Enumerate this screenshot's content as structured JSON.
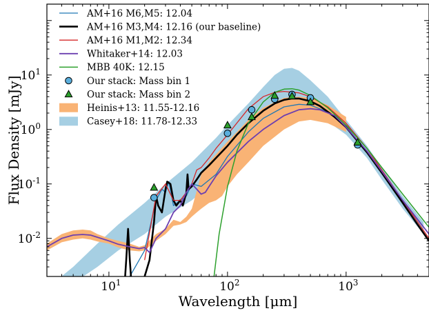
{
  "chart_data": {
    "type": "line",
    "xlabel": "Wavelength [μm]",
    "ylabel": "Flux Density [mJy]",
    "xscale": "log",
    "yscale": "log",
    "xlim": [
      3,
      5000
    ],
    "ylim": [
      0.002,
      200
    ],
    "legend_position": "top-left",
    "x_ticks": [
      {
        "value": 10,
        "label": "10",
        "exp": "1"
      },
      {
        "value": 100,
        "label": "10",
        "exp": "2"
      },
      {
        "value": 1000,
        "label": "10",
        "exp": "3"
      }
    ],
    "y_ticks": [
      {
        "value": 0.01,
        "label": "10",
        "exp": "-2"
      },
      {
        "value": 0.1,
        "label": "10",
        "exp": "-1"
      },
      {
        "value": 1,
        "label": "10",
        "exp": "0"
      },
      {
        "value": 10,
        "label": "10",
        "exp": "1"
      }
    ],
    "bands": [
      {
        "name": "Casey+18: 11.78-12.33",
        "color": "#a6cfe3",
        "upper": [
          [
            3.5,
            0.0016
          ],
          [
            5,
            0.003
          ],
          [
            8,
            0.008
          ],
          [
            12,
            0.018
          ],
          [
            20,
            0.045
          ],
          [
            30,
            0.1
          ],
          [
            50,
            0.25
          ],
          [
            80,
            0.7
          ],
          [
            100,
            1.2
          ],
          [
            150,
            3.0
          ],
          [
            200,
            6.0
          ],
          [
            250,
            10.0
          ],
          [
            300,
            13.0
          ],
          [
            350,
            13.5
          ],
          [
            400,
            12.0
          ],
          [
            500,
            8.0
          ],
          [
            700,
            4.0
          ],
          [
            1000,
            1.5
          ],
          [
            1500,
            0.5
          ],
          [
            2000,
            0.2
          ],
          [
            3000,
            0.06
          ],
          [
            4500,
            0.02
          ]
        ],
        "lower": [
          [
            3.5,
            0.0008
          ],
          [
            5,
            0.0015
          ],
          [
            8,
            0.003
          ],
          [
            12,
            0.006
          ],
          [
            20,
            0.012
          ],
          [
            30,
            0.025
          ],
          [
            50,
            0.05
          ],
          [
            80,
            0.12
          ],
          [
            100,
            0.2
          ],
          [
            150,
            0.55
          ],
          [
            200,
            1.1
          ],
          [
            250,
            1.5
          ],
          [
            300,
            1.8
          ],
          [
            400,
            2.0
          ],
          [
            500,
            1.9
          ],
          [
            700,
            1.4
          ],
          [
            1000,
            0.8
          ],
          [
            1500,
            0.3
          ],
          [
            2000,
            0.12
          ],
          [
            3000,
            0.035
          ],
          [
            4500,
            0.012
          ]
        ]
      },
      {
        "name": "Heinis+13: 11.55-12.16",
        "color": "#f9b375",
        "upper": [
          [
            3,
            0.008
          ],
          [
            4,
            0.012
          ],
          [
            5,
            0.014
          ],
          [
            6,
            0.0145
          ],
          [
            7,
            0.014
          ],
          [
            8,
            0.012
          ],
          [
            10,
            0.01
          ],
          [
            12,
            0.009
          ],
          [
            15,
            0.008
          ],
          [
            18,
            0.007
          ],
          [
            20,
            0.0075
          ],
          [
            25,
            0.012
          ],
          [
            30,
            0.015
          ],
          [
            35,
            0.022
          ],
          [
            40,
            0.02
          ],
          [
            45,
            0.025
          ],
          [
            50,
            0.035
          ],
          [
            60,
            0.15
          ],
          [
            70,
            0.25
          ],
          [
            80,
            0.35
          ],
          [
            100,
            0.6
          ],
          [
            120,
            0.9
          ],
          [
            150,
            1.5
          ],
          [
            200,
            2.5
          ],
          [
            300,
            3.8
          ],
          [
            400,
            4.0
          ],
          [
            500,
            3.8
          ],
          [
            700,
            2.8
          ],
          [
            1000,
            1.7
          ]
        ],
        "lower": [
          [
            3,
            0.006
          ],
          [
            4,
            0.0085
          ],
          [
            5,
            0.0095
          ],
          [
            6,
            0.01
          ],
          [
            7,
            0.0095
          ],
          [
            8,
            0.0088
          ],
          [
            10,
            0.008
          ],
          [
            12,
            0.0068
          ],
          [
            15,
            0.006
          ],
          [
            18,
            0.0058
          ],
          [
            20,
            0.006
          ],
          [
            25,
            0.009
          ],
          [
            30,
            0.012
          ],
          [
            35,
            0.017
          ],
          [
            40,
            0.018
          ],
          [
            45,
            0.02
          ],
          [
            50,
            0.025
          ],
          [
            55,
            0.03
          ],
          [
            60,
            0.035
          ],
          [
            70,
            0.045
          ],
          [
            80,
            0.05
          ],
          [
            90,
            0.06
          ],
          [
            100,
            0.09
          ],
          [
            120,
            0.15
          ],
          [
            150,
            0.25
          ],
          [
            200,
            0.5
          ],
          [
            300,
            1.0
          ],
          [
            400,
            1.4
          ],
          [
            500,
            1.5
          ],
          [
            700,
            1.3
          ],
          [
            1000,
            0.9
          ]
        ]
      }
    ],
    "series": [
      {
        "name": "AM+16 M6,M5: 12.04",
        "color": "#1f77b4",
        "width": 1.3,
        "points": [
          [
            15,
            0.002
          ],
          [
            20,
            0.006
          ],
          [
            25,
            0.05
          ],
          [
            28,
            0.08
          ],
          [
            30,
            0.07
          ],
          [
            32,
            0.11
          ],
          [
            35,
            0.04
          ],
          [
            40,
            0.05
          ],
          [
            45,
            0.06
          ],
          [
            50,
            0.1
          ],
          [
            60,
            0.09
          ],
          [
            80,
            0.15
          ],
          [
            100,
            0.32
          ],
          [
            150,
            0.9
          ],
          [
            200,
            1.6
          ],
          [
            300,
            2.6
          ],
          [
            400,
            2.9
          ],
          [
            500,
            2.8
          ],
          [
            700,
            2.1
          ],
          [
            1000,
            1.1
          ],
          [
            1500,
            0.4
          ],
          [
            2000,
            0.17
          ],
          [
            3000,
            0.05
          ],
          [
            5000,
            0.012
          ]
        ]
      },
      {
        "name": "AM+16 M3,M4: 12.16 (our baseline)",
        "color": "#000000",
        "width": 2.6,
        "points": [
          [
            13.5,
            0.0012
          ],
          [
            14,
            0.004
          ],
          [
            14.5,
            0.015
          ],
          [
            15,
            0.004
          ],
          [
            15.5,
            0.0015
          ],
          [
            20,
            0.002
          ],
          [
            22,
            0.004
          ],
          [
            24,
            0.02
          ],
          [
            25,
            0.06
          ],
          [
            26,
            0.04
          ],
          [
            28,
            0.03
          ],
          [
            30,
            0.08
          ],
          [
            31,
            0.11
          ],
          [
            33,
            0.1
          ],
          [
            35,
            0.05
          ],
          [
            37,
            0.04
          ],
          [
            40,
            0.05
          ],
          [
            42,
            0.04
          ],
          [
            45,
            0.07
          ],
          [
            46,
            0.15
          ],
          [
            47,
            0.08
          ],
          [
            50,
            0.09
          ],
          [
            55,
            0.12
          ],
          [
            60,
            0.16
          ],
          [
            70,
            0.22
          ],
          [
            80,
            0.3
          ],
          [
            100,
            0.5
          ],
          [
            120,
            0.8
          ],
          [
            150,
            1.3
          ],
          [
            200,
            2.2
          ],
          [
            250,
            3.0
          ],
          [
            300,
            3.5
          ],
          [
            350,
            3.7
          ],
          [
            400,
            3.7
          ],
          [
            500,
            3.3
          ],
          [
            600,
            2.7
          ],
          [
            800,
            1.7
          ],
          [
            1000,
            1.1
          ],
          [
            1300,
            0.55
          ],
          [
            1500,
            0.38
          ],
          [
            2000,
            0.16
          ],
          [
            3000,
            0.045
          ],
          [
            4000,
            0.018
          ],
          [
            5000,
            0.009
          ]
        ]
      },
      {
        "name": "AM+16 M1,M2: 12.34",
        "color": "#d62728",
        "width": 1.3,
        "points": [
          [
            20,
            0.004
          ],
          [
            25,
            0.06
          ],
          [
            30,
            0.1
          ],
          [
            35,
            0.05
          ],
          [
            40,
            0.05
          ],
          [
            45,
            0.07
          ],
          [
            50,
            0.1
          ],
          [
            55,
            0.18
          ],
          [
            60,
            0.2
          ],
          [
            70,
            0.3
          ],
          [
            80,
            0.45
          ],
          [
            100,
            0.8
          ],
          [
            150,
            2.4
          ],
          [
            200,
            4.0
          ],
          [
            250,
            4.8
          ],
          [
            300,
            5.0
          ],
          [
            400,
            4.7
          ],
          [
            500,
            4.0
          ],
          [
            700,
            2.6
          ],
          [
            1000,
            1.3
          ],
          [
            1500,
            0.45
          ],
          [
            2000,
            0.18
          ],
          [
            3000,
            0.05
          ],
          [
            5000,
            0.01
          ]
        ]
      },
      {
        "name": "Whitaker+14: 12.03",
        "color": "#6c3fb0",
        "width": 1.8,
        "points": [
          [
            3,
            0.007
          ],
          [
            4,
            0.01
          ],
          [
            5,
            0.0115
          ],
          [
            6,
            0.0118
          ],
          [
            7,
            0.0115
          ],
          [
            8,
            0.0105
          ],
          [
            10,
            0.009
          ],
          [
            12,
            0.0078
          ],
          [
            15,
            0.007
          ],
          [
            18,
            0.0065
          ],
          [
            20,
            0.0068
          ],
          [
            22,
            0.0055
          ],
          [
            25,
            0.01
          ],
          [
            30,
            0.015
          ],
          [
            35,
            0.03
          ],
          [
            40,
            0.04
          ],
          [
            45,
            0.07
          ],
          [
            50,
            0.1
          ],
          [
            55,
            0.08
          ],
          [
            60,
            0.065
          ],
          [
            65,
            0.07
          ],
          [
            70,
            0.09
          ],
          [
            80,
            0.14
          ],
          [
            100,
            0.25
          ],
          [
            150,
            0.6
          ],
          [
            200,
            1.0
          ],
          [
            300,
            1.8
          ],
          [
            400,
            2.3
          ],
          [
            500,
            2.4
          ],
          [
            600,
            2.3
          ],
          [
            800,
            1.8
          ],
          [
            1000,
            1.1
          ],
          [
            1500,
            0.4
          ],
          [
            2000,
            0.17
          ],
          [
            3000,
            0.05
          ],
          [
            5000,
            0.012
          ]
        ]
      },
      {
        "name": "MBB 40K: 12.15",
        "color": "#2ca02c",
        "width": 1.5,
        "points": [
          [
            77,
            0.002
          ],
          [
            85,
            0.012
          ],
          [
            100,
            0.09
          ],
          [
            120,
            0.4
          ],
          [
            150,
            1.3
          ],
          [
            200,
            3.2
          ],
          [
            250,
            4.8
          ],
          [
            300,
            5.5
          ],
          [
            350,
            5.6
          ],
          [
            400,
            5.3
          ],
          [
            500,
            4.2
          ],
          [
            700,
            2.5
          ],
          [
            1000,
            1.2
          ],
          [
            1500,
            0.45
          ],
          [
            2000,
            0.2
          ],
          [
            3000,
            0.065
          ],
          [
            5000,
            0.016
          ]
        ]
      }
    ],
    "markers": [
      {
        "name": "Our stack: Mass bin 1",
        "shape": "circle",
        "color": "#5aaedc",
        "points": [
          [
            24,
            0.056
          ],
          [
            100,
            0.85
          ],
          [
            160,
            2.3
          ],
          [
            250,
            3.6
          ],
          [
            350,
            4.4
          ],
          [
            500,
            3.8
          ],
          [
            1250,
            0.52
          ]
        ]
      },
      {
        "name": "Our stack: Mass bin 2",
        "shape": "triangle",
        "color": "#2ca02c",
        "points": [
          [
            24,
            0.086
          ],
          [
            100,
            1.2
          ],
          [
            160,
            1.7
          ],
          [
            250,
            4.2
          ],
          [
            350,
            4.1
          ],
          [
            500,
            3.2
          ],
          [
            1250,
            0.58
          ]
        ]
      }
    ],
    "legend": [
      {
        "label": "AM+16 M6,M5: 12.04",
        "kind": "line",
        "ref": 0
      },
      {
        "label": "AM+16 M3,M4: 12.16 (our baseline)",
        "kind": "line",
        "ref": 1
      },
      {
        "label": "AM+16 M1,M2: 12.34",
        "kind": "line",
        "ref": 2
      },
      {
        "label": "Whitaker+14: 12.03",
        "kind": "line",
        "ref": 3
      },
      {
        "label": "MBB 40K: 12.15",
        "kind": "line",
        "ref": 4
      },
      {
        "label": "Our stack: Mass bin 1",
        "kind": "marker",
        "ref": 0
      },
      {
        "label": "Our stack: Mass bin 2",
        "kind": "marker",
        "ref": 1
      },
      {
        "label": "Heinis+13: 11.55-12.16",
        "kind": "band",
        "ref": 1
      },
      {
        "label": "Casey+18: 11.78-12.33",
        "kind": "band",
        "ref": 0
      }
    ]
  }
}
